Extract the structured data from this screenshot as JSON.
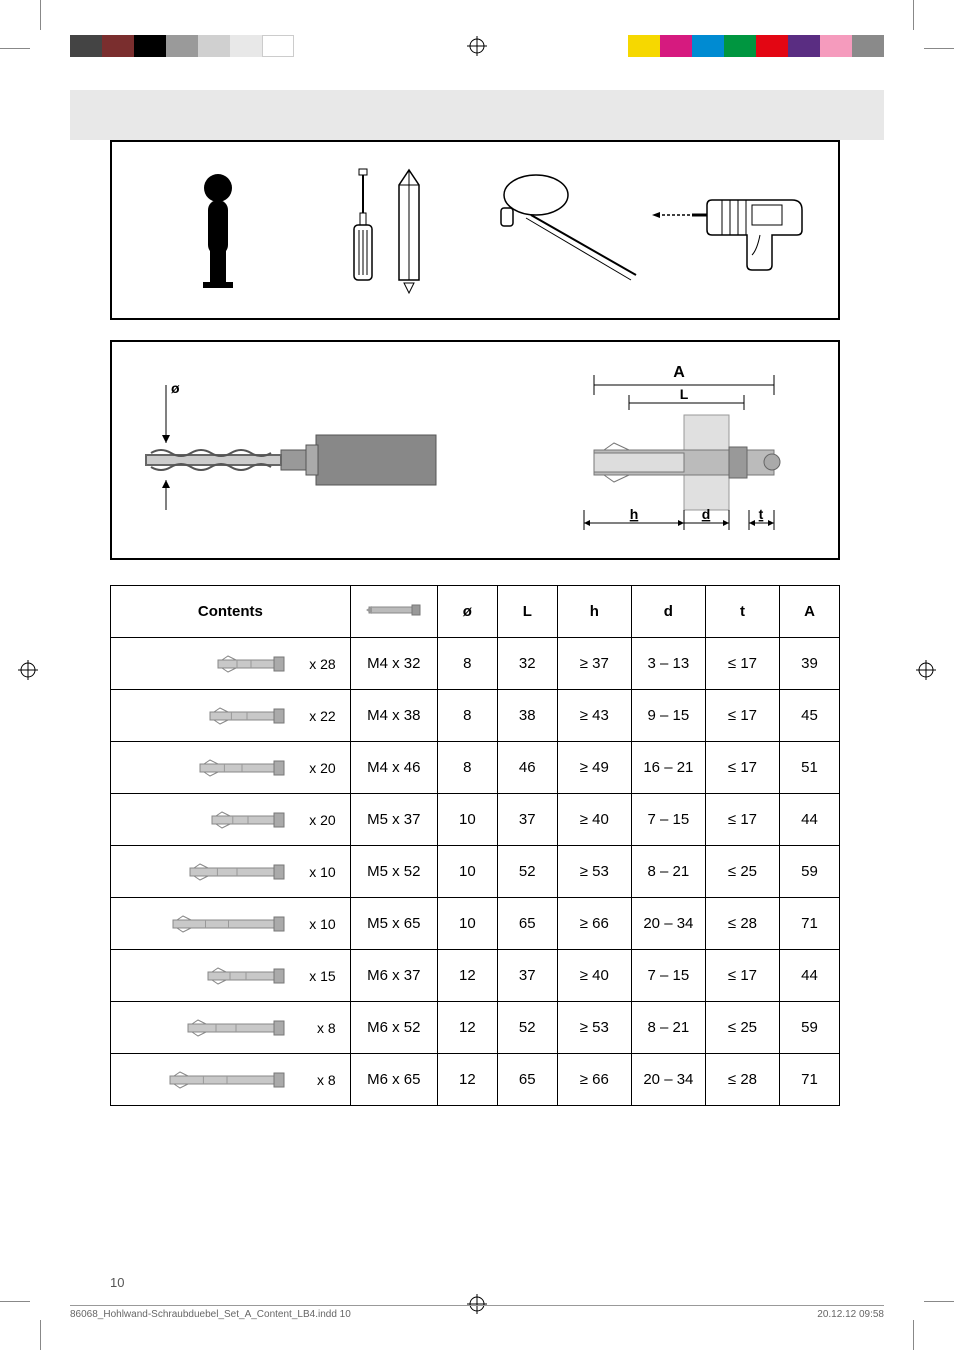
{
  "colorbar_left": [
    "#444444",
    "#7a2e2e",
    "#000000",
    "#9a9a9a",
    "#d0d0d0",
    "#e8e8e8",
    "#ffffff"
  ],
  "colorbar_right": [
    "#f6d800",
    "#d61a7f",
    "#008bd2",
    "#009640",
    "#e30613",
    "#5a2d82",
    "#f59bbd",
    "#8a8a8a"
  ],
  "table": {
    "headers": {
      "contents": "Contents",
      "o": "ø",
      "L": "L",
      "h": "h",
      "d": "d",
      "t": "t",
      "A": "A"
    },
    "rows": [
      {
        "qty": "x 28",
        "spec": "M4 x 32",
        "o": "8",
        "L": "32",
        "h": "≥ 37",
        "d": "3 – 13",
        "t": "≤ 17",
        "A": "39",
        "len": 70
      },
      {
        "qty": "x 22",
        "spec": "M4 x 38",
        "o": "8",
        "L": "38",
        "h": "≥ 43",
        "d": "9 – 15",
        "t": "≤ 17",
        "A": "45",
        "len": 78
      },
      {
        "qty": "x 20",
        "spec": "M4 x 46",
        "o": "8",
        "L": "46",
        "h": "≥ 49",
        "d": "16 – 21",
        "t": "≤ 17",
        "A": "51",
        "len": 88
      },
      {
        "qty": "x 20",
        "spec": "M5 x 37",
        "o": "10",
        "L": "37",
        "h": "≥ 40",
        "d": "7 – 15",
        "t": "≤ 17",
        "A": "44",
        "len": 76
      },
      {
        "qty": "x 10",
        "spec": "M5 x 52",
        "o": "10",
        "L": "52",
        "h": "≥ 53",
        "d": "8 – 21",
        "t": "≤ 25",
        "A": "59",
        "len": 98
      },
      {
        "qty": "x 10",
        "spec": "M5 x 65",
        "o": "10",
        "L": "65",
        "h": "≥ 66",
        "d": "20 – 34",
        "t": "≤ 28",
        "A": "71",
        "len": 115
      },
      {
        "qty": "x 15",
        "spec": "M6 x 37",
        "o": "12",
        "L": "37",
        "h": "≥ 40",
        "d": "7 – 15",
        "t": "≤ 17",
        "A": "44",
        "len": 80
      },
      {
        "qty": "x 8",
        "spec": "M6 x 52",
        "o": "12",
        "L": "52",
        "h": "≥ 53",
        "d": "8 – 21",
        "t": "≤ 25",
        "A": "59",
        "len": 100
      },
      {
        "qty": "x 8",
        "spec": "M6 x 65",
        "o": "12",
        "L": "65",
        "h": "≥ 66",
        "d": "20 – 34",
        "t": "≤ 28",
        "A": "71",
        "len": 118
      }
    ]
  },
  "dim_labels": {
    "o": "ø",
    "A": "A",
    "L": "L",
    "h": "h",
    "d": "d",
    "t": "t"
  },
  "page_number": "10",
  "footer_left": "86068_Hohlwand-Schraubduebel_Set_A_Content_LB4.indd   10",
  "footer_right": "20.12.12   09:58"
}
